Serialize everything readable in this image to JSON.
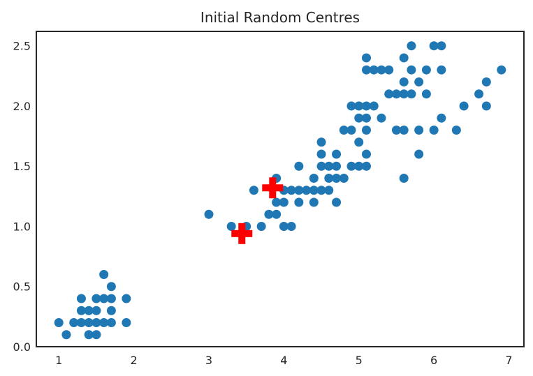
{
  "chart_data": {
    "type": "scatter",
    "title": "Initial Random Centres",
    "xlabel": "",
    "ylabel": "",
    "xlim": [
      0.7,
      7.2
    ],
    "ylim": [
      0,
      2.62
    ],
    "grid": false,
    "x_ticks": [
      {
        "value": 1,
        "label": "1"
      },
      {
        "value": 2,
        "label": "2"
      },
      {
        "value": 3,
        "label": "3"
      },
      {
        "value": 4,
        "label": "4"
      },
      {
        "value": 5,
        "label": "5"
      },
      {
        "value": 6,
        "label": "6"
      },
      {
        "value": 7,
        "label": "7"
      }
    ],
    "y_ticks": [
      {
        "value": 0.0,
        "label": "0.0"
      },
      {
        "value": 0.5,
        "label": "0.5"
      },
      {
        "value": 1.0,
        "label": "1.0"
      },
      {
        "value": 1.5,
        "label": "1.5"
      },
      {
        "value": 2.0,
        "label": "2.0"
      },
      {
        "value": 2.5,
        "label": "2.5"
      }
    ],
    "series": [
      {
        "marker": "circle",
        "color": "#1f77b4",
        "points": [
          [
            1.0,
            0.2
          ],
          [
            1.1,
            0.1
          ],
          [
            1.2,
            0.2
          ],
          [
            1.3,
            0.2
          ],
          [
            1.3,
            0.3
          ],
          [
            1.3,
            0.4
          ],
          [
            1.4,
            0.1
          ],
          [
            1.4,
            0.2
          ],
          [
            1.4,
            0.3
          ],
          [
            1.5,
            0.1
          ],
          [
            1.5,
            0.2
          ],
          [
            1.5,
            0.3
          ],
          [
            1.5,
            0.4
          ],
          [
            1.6,
            0.2
          ],
          [
            1.6,
            0.4
          ],
          [
            1.6,
            0.6
          ],
          [
            1.7,
            0.2
          ],
          [
            1.7,
            0.3
          ],
          [
            1.7,
            0.4
          ],
          [
            1.7,
            0.5
          ],
          [
            1.9,
            0.2
          ],
          [
            1.9,
            0.4
          ],
          [
            3.0,
            1.1
          ],
          [
            3.3,
            1.0
          ],
          [
            3.5,
            1.0
          ],
          [
            3.6,
            1.3
          ],
          [
            3.7,
            1.0
          ],
          [
            3.8,
            1.1
          ],
          [
            3.9,
            1.1
          ],
          [
            3.9,
            1.2
          ],
          [
            3.9,
            1.4
          ],
          [
            4.0,
            1.0
          ],
          [
            4.0,
            1.2
          ],
          [
            4.0,
            1.3
          ],
          [
            4.1,
            1.0
          ],
          [
            4.1,
            1.3
          ],
          [
            4.2,
            1.2
          ],
          [
            4.2,
            1.3
          ],
          [
            4.2,
            1.5
          ],
          [
            4.3,
            1.3
          ],
          [
            4.4,
            1.2
          ],
          [
            4.4,
            1.3
          ],
          [
            4.4,
            1.4
          ],
          [
            4.5,
            1.3
          ],
          [
            4.5,
            1.5
          ],
          [
            4.5,
            1.6
          ],
          [
            4.5,
            1.7
          ],
          [
            4.6,
            1.3
          ],
          [
            4.6,
            1.4
          ],
          [
            4.6,
            1.5
          ],
          [
            4.7,
            1.2
          ],
          [
            4.7,
            1.4
          ],
          [
            4.7,
            1.5
          ],
          [
            4.7,
            1.6
          ],
          [
            4.8,
            1.4
          ],
          [
            4.8,
            1.8
          ],
          [
            4.9,
            1.5
          ],
          [
            4.9,
            1.8
          ],
          [
            5.0,
            1.5
          ],
          [
            5.0,
            1.7
          ],
          [
            5.0,
            2.0
          ],
          [
            5.1,
            1.6
          ],
          [
            5.1,
            1.5
          ],
          [
            4.9,
            2.0
          ],
          [
            5.0,
            1.9
          ],
          [
            5.0,
            2.0
          ],
          [
            5.1,
            1.8
          ],
          [
            5.1,
            1.9
          ],
          [
            5.1,
            2.0
          ],
          [
            5.1,
            2.3
          ],
          [
            5.1,
            2.4
          ],
          [
            5.2,
            2.0
          ],
          [
            5.2,
            2.3
          ],
          [
            5.3,
            1.9
          ],
          [
            5.3,
            2.3
          ],
          [
            5.4,
            2.1
          ],
          [
            5.4,
            2.3
          ],
          [
            5.5,
            1.8
          ],
          [
            5.5,
            2.1
          ],
          [
            5.6,
            1.4
          ],
          [
            5.6,
            1.8
          ],
          [
            5.6,
            2.1
          ],
          [
            5.6,
            2.2
          ],
          [
            5.6,
            2.4
          ],
          [
            5.7,
            2.1
          ],
          [
            5.7,
            2.3
          ],
          [
            5.7,
            2.5
          ],
          [
            5.8,
            1.6
          ],
          [
            5.8,
            1.8
          ],
          [
            5.8,
            2.2
          ],
          [
            5.9,
            2.1
          ],
          [
            5.9,
            2.3
          ],
          [
            6.0,
            1.8
          ],
          [
            6.0,
            2.5
          ],
          [
            6.1,
            1.9
          ],
          [
            6.1,
            2.3
          ],
          [
            6.1,
            2.5
          ],
          [
            6.3,
            1.8
          ],
          [
            6.4,
            2.0
          ],
          [
            6.6,
            2.1
          ],
          [
            6.7,
            2.0
          ],
          [
            6.7,
            2.2
          ],
          [
            6.9,
            2.3
          ]
        ]
      },
      {
        "marker": "plus",
        "color": "#ff0000",
        "points": [
          [
            3.44,
            0.94
          ],
          [
            3.85,
            1.32
          ]
        ]
      }
    ]
  }
}
